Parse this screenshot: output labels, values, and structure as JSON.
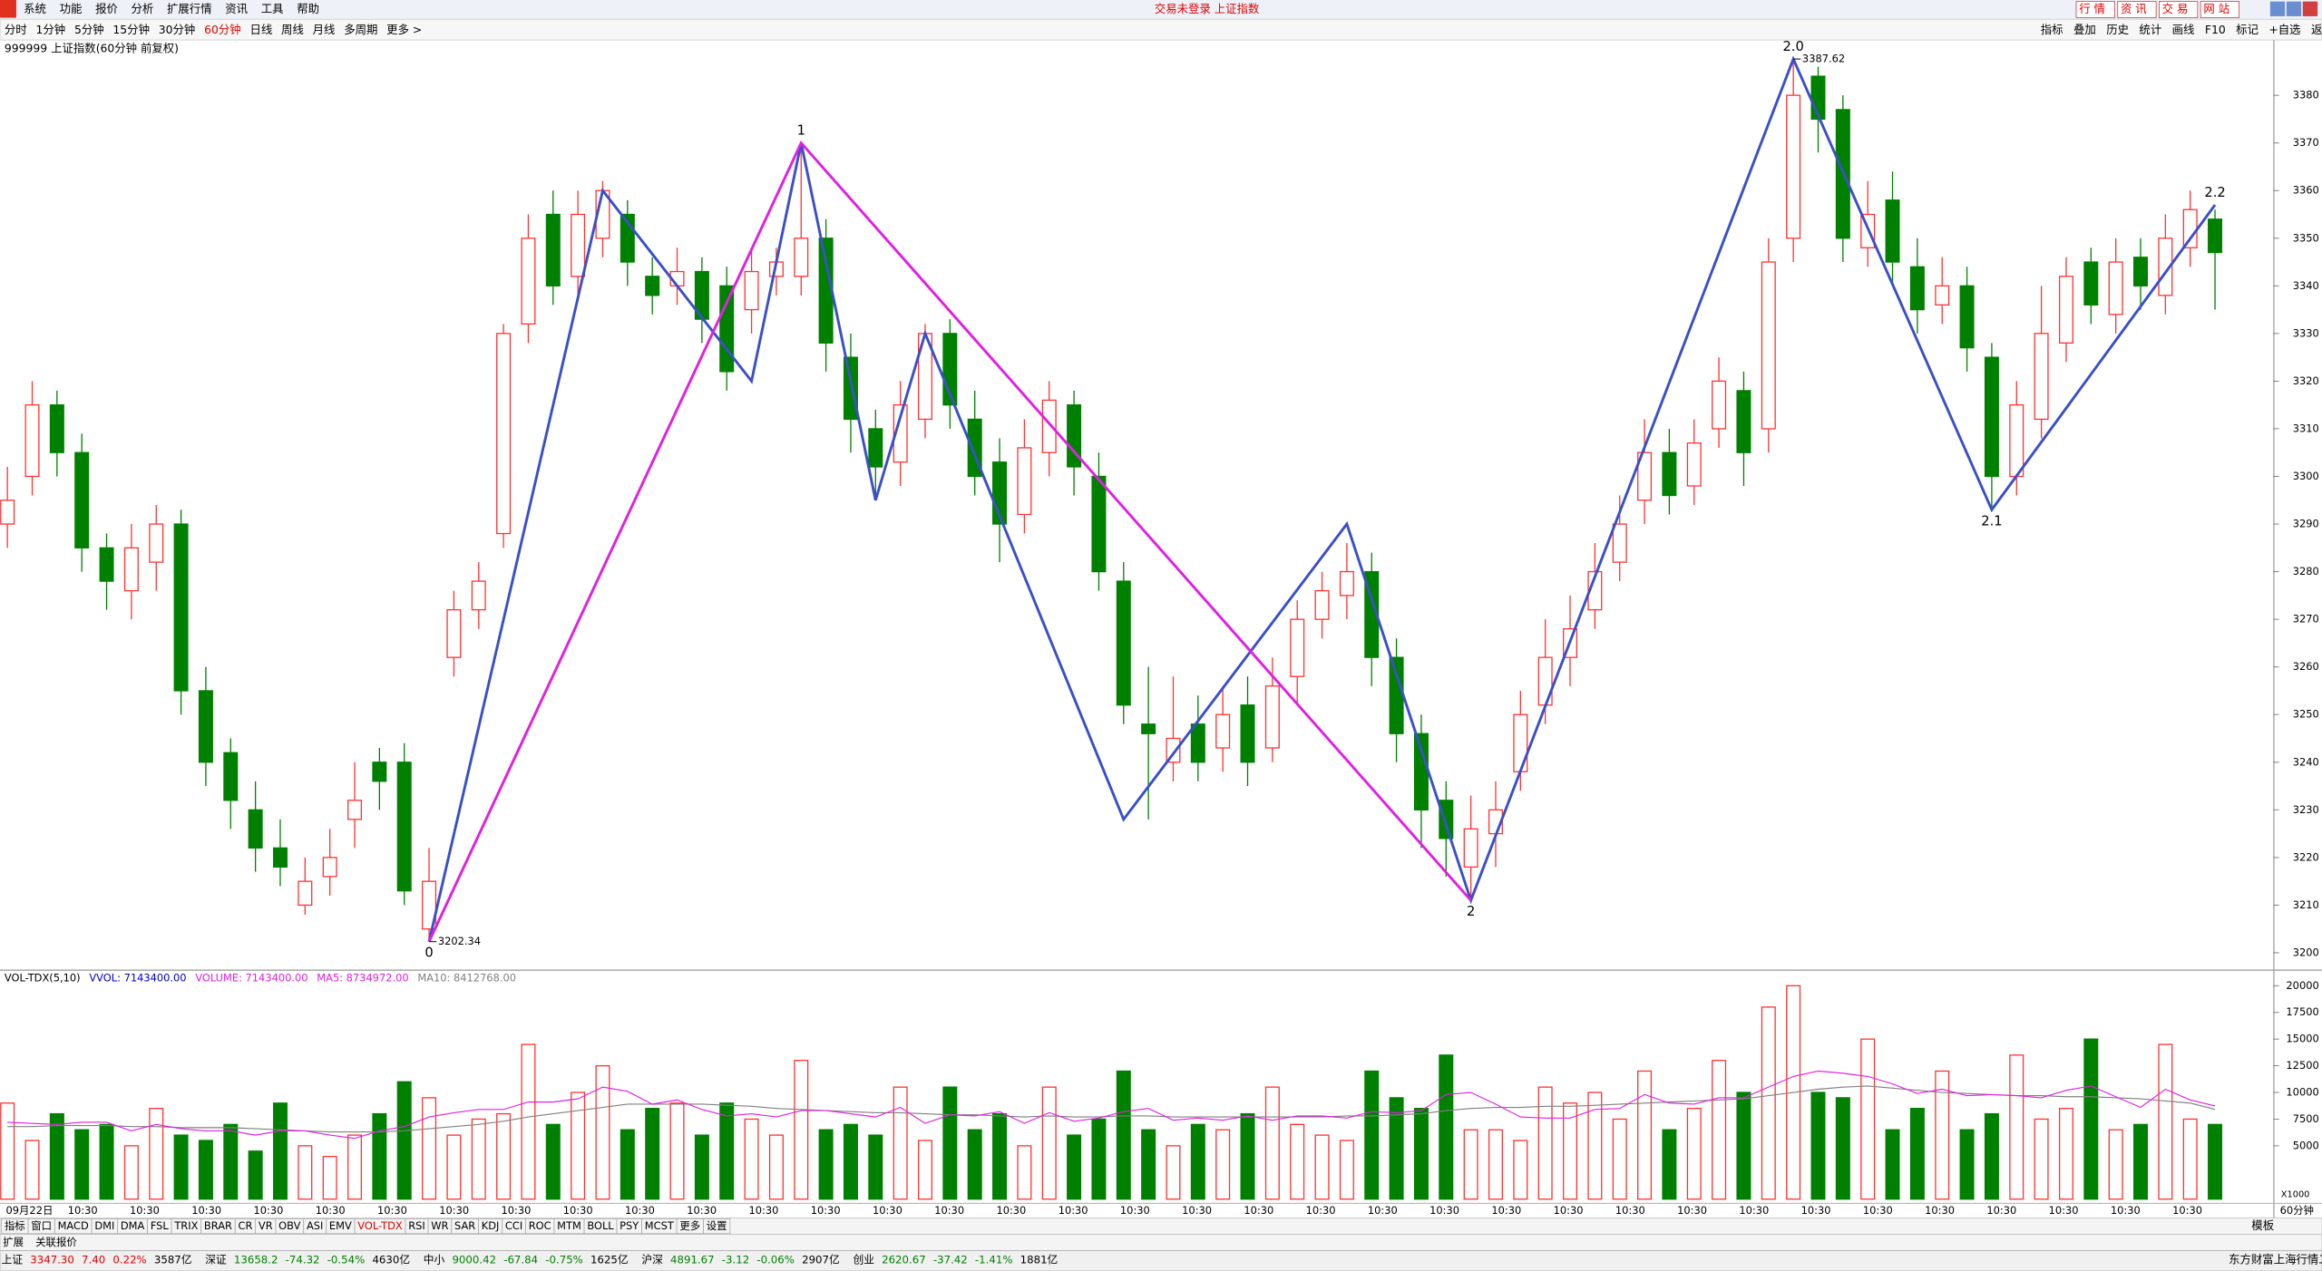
{
  "menu": [
    "系统",
    "功能",
    "报价",
    "分析",
    "扩展行情",
    "资讯",
    "工具",
    "帮助"
  ],
  "window_title": "交易未登录 上证指数",
  "top_buttons": [
    "行 情",
    "资 讯",
    "交 易",
    "网 站"
  ],
  "periods": [
    "分时",
    "1分钟",
    "5分钟",
    "15分钟",
    "30分钟",
    "60分钟",
    "日线",
    "周线",
    "月线",
    "多周期",
    "更多 >"
  ],
  "tools": [
    "指标",
    "叠加",
    "历史",
    "统计",
    "画线",
    "F10",
    "标记",
    "+自选",
    "返回"
  ],
  "chart_data": [
    {
      "type": "candlestick",
      "title": "999999 上证指数(60分钟 前复权)",
      "up_color": "#ff3232",
      "down_color": "#008000",
      "ylim": [
        3196.5,
        3388.2
      ],
      "yticks": [
        3200,
        3210,
        3220,
        3230,
        3240,
        3250,
        3260,
        3270,
        3280,
        3290,
        3300,
        3310,
        3320,
        3330,
        3340,
        3350,
        3360,
        3370,
        3380
      ],
      "open": [
        3290,
        3300,
        3315,
        3305,
        3285,
        3276,
        3282,
        3290,
        3255,
        3242,
        3230,
        3222,
        3210,
        3216,
        3228,
        3240,
        3240,
        3205,
        3262,
        3272,
        3288,
        3332,
        3355,
        3342,
        3350,
        3355,
        3342,
        3340,
        3343,
        3340,
        3335,
        3342,
        3342,
        3350,
        3325,
        3310,
        3303,
        3312,
        3330,
        3312,
        3303,
        3292,
        3305,
        3315,
        3300,
        3278,
        3248,
        3240,
        3248,
        3243,
        3252,
        3243,
        3258,
        3270,
        3275,
        3280,
        3262,
        3246,
        3232,
        3218,
        3225,
        3238,
        3252,
        3262,
        3272,
        3282,
        3295,
        3305,
        3298,
        3310,
        3318,
        3310,
        3350,
        3384,
        3377,
        3348,
        3358,
        3344,
        3336,
        3340,
        3325,
        3300,
        3312,
        3328,
        3345,
        3334,
        3346,
        3338,
        3348,
        3354
      ],
      "high": [
        3302,
        3320,
        3318,
        3309,
        3288,
        3290,
        3294,
        3293,
        3260,
        3245,
        3236,
        3228,
        3220,
        3226,
        3240,
        3243,
        3244,
        3222,
        3276,
        3282,
        3332,
        3355,
        3360,
        3360,
        3362,
        3358,
        3346,
        3348,
        3346,
        3344,
        3348,
        3348,
        3370,
        3354,
        3330,
        3314,
        3320,
        3332,
        3333,
        3318,
        3308,
        3312,
        3320,
        3318,
        3305,
        3282,
        3260,
        3258,
        3254,
        3256,
        3258,
        3262,
        3274,
        3280,
        3286,
        3284,
        3266,
        3250,
        3236,
        3233,
        3236,
        3255,
        3270,
        3275,
        3286,
        3296,
        3312,
        3310,
        3312,
        3325,
        3322,
        3350,
        3387.62,
        3386,
        3380,
        3362,
        3364,
        3350,
        3346,
        3344,
        3328,
        3320,
        3340,
        3346,
        3348,
        3350,
        3350,
        3355,
        3360,
        3356
      ],
      "low": [
        3285,
        3296,
        3300,
        3280,
        3272,
        3270,
        3276,
        3250,
        3235,
        3226,
        3217,
        3214,
        3208,
        3212,
        3222,
        3230,
        3210,
        3202.34,
        3258,
        3268,
        3285,
        3328,
        3336,
        3338,
        3346,
        3340,
        3334,
        3336,
        3328,
        3318,
        3330,
        3338,
        3338,
        3322,
        3305,
        3295,
        3298,
        3308,
        3310,
        3296,
        3282,
        3288,
        3300,
        3296,
        3276,
        3248,
        3228,
        3236,
        3236,
        3238,
        3235,
        3240,
        3252,
        3266,
        3270,
        3256,
        3240,
        3222,
        3216,
        3211,
        3218,
        3234,
        3248,
        3256,
        3268,
        3278,
        3290,
        3292,
        3294,
        3306,
        3298,
        3305,
        3345,
        3368,
        3345,
        3344,
        3340,
        3330,
        3332,
        3322,
        3293,
        3296,
        3308,
        3324,
        3332,
        3330,
        3335,
        3334,
        3344,
        3335
      ],
      "close": [
        3295,
        3315,
        3305,
        3285,
        3278,
        3285,
        3290,
        3255,
        3240,
        3232,
        3222,
        3218,
        3215,
        3220,
        3232,
        3236,
        3213,
        3215,
        3272,
        3278,
        3330,
        3350,
        3340,
        3355,
        3360,
        3345,
        3338,
        3343,
        3333,
        3322,
        3343,
        3345,
        3350,
        3328,
        3312,
        3302,
        3315,
        3330,
        3315,
        3300,
        3290,
        3306,
        3316,
        3302,
        3280,
        3252,
        3246,
        3245,
        3240,
        3250,
        3240,
        3256,
        3270,
        3276,
        3280,
        3262,
        3246,
        3230,
        3224,
        3226,
        3230,
        3250,
        3262,
        3268,
        3280,
        3290,
        3305,
        3296,
        3307,
        3320,
        3305,
        3345,
        3380,
        3375,
        3350,
        3355,
        3345,
        3335,
        3340,
        3327,
        3300,
        3315,
        3330,
        3342,
        3336,
        3345,
        3340,
        3350,
        3356,
        3347
      ],
      "waves": [
        {
          "color": "#3a4fc8",
          "points": [
            {
              "i": 17,
              "price": 3202.34
            },
            {
              "i": 24,
              "price": 3360
            },
            {
              "i": 30,
              "price": 3320
            },
            {
              "i": 32,
              "price": 3370
            },
            {
              "i": 35,
              "price": 3295
            },
            {
              "i": 37,
              "price": 3330
            },
            {
              "i": 45,
              "price": 3228
            },
            {
              "i": 54,
              "price": 3290
            },
            {
              "i": 59,
              "price": 3211
            },
            {
              "i": 72,
              "price": 3387.62
            },
            {
              "i": 80,
              "price": 3293
            },
            {
              "i": 89,
              "price": 3357
            }
          ]
        },
        {
          "color": "#e020e0",
          "points": [
            {
              "i": 17,
              "price": 3202.34
            },
            {
              "i": 32,
              "price": 3370
            },
            {
              "i": 59,
              "price": 3211
            }
          ]
        }
      ],
      "wave_labels": [
        {
          "text": "0",
          "i": 17,
          "price": 3202.34
        },
        {
          "text": "1",
          "i": 32,
          "price": 3370
        },
        {
          "text": "2",
          "i": 59,
          "price": 3211
        },
        {
          "text": "2.0",
          "i": 72,
          "price": 3387.62
        },
        {
          "text": "2.1",
          "i": 80,
          "price": 3293
        },
        {
          "text": "2.2",
          "i": 89,
          "price": 3357
        }
      ],
      "price_marks": [
        {
          "i": 17,
          "value": 3202.34
        },
        {
          "i": 72,
          "value": 3387.62
        }
      ]
    },
    {
      "type": "volume",
      "header": [
        "VOL-TDX(5,10)",
        "VVOL: 7143400.00",
        "VOLUME: 7143400.00",
        "MA5: 8734972.00",
        "MA10: 8412768.00"
      ],
      "header_colors": [
        "#000000",
        "#0000c8",
        "#e020e0",
        "#e020e0",
        "#808080"
      ],
      "axis_unit": "X1000",
      "ylim": [
        -250,
        21250
      ],
      "yticks": [
        5000,
        7500,
        10000,
        12500,
        15000,
        17500,
        20000
      ],
      "ma5_color": "#e020e0",
      "ma10_color": "#808080",
      "values": [
        9000,
        5500,
        8000,
        6500,
        7000,
        5000,
        8500,
        6000,
        5500,
        7000,
        4500,
        9000,
        5000,
        4000,
        6000,
        8000,
        11000,
        9500,
        6000,
        7500,
        8000,
        14500,
        7000,
        10000,
        12500,
        6500,
        8500,
        9000,
        6000,
        9000,
        7500,
        6000,
        13000,
        6500,
        7000,
        6000,
        10500,
        5500,
        10500,
        6500,
        8000,
        5000,
        10500,
        6000,
        7500,
        12000,
        6500,
        5000,
        7000,
        6500,
        8000,
        10500,
        7000,
        6000,
        5500,
        12000,
        9500,
        8500,
        13500,
        6500,
        6500,
        5500,
        10500,
        9000,
        10000,
        7500,
        12000,
        6500,
        8500,
        13000,
        10000,
        18000,
        20000,
        10000,
        9500,
        15000,
        6500,
        8500,
        12000,
        6500,
        8000,
        13500,
        7500,
        8500,
        15000,
        6500,
        7000,
        14500,
        7500,
        7000
      ],
      "ma5": [
        7200,
        7100,
        7000,
        7200,
        7200,
        6400,
        7000,
        6600,
        6400,
        6400,
        6000,
        6400,
        6400,
        6000,
        5700,
        6400,
        6800,
        7700,
        8100,
        8400,
        8400,
        9100,
        9100,
        9400,
        10500,
        10100,
        8900,
        9300,
        8400,
        7800,
        8000,
        7700,
        8300,
        8300,
        8000,
        7700,
        8600,
        7100,
        7900,
        7800,
        8200,
        7100,
        8100,
        7300,
        7600,
        8200,
        8500,
        7400,
        7600,
        7400,
        7800,
        7400,
        7800,
        7800,
        7600,
        8200,
        8100,
        8300,
        9800,
        10000,
        8900,
        7700,
        7600,
        7600,
        8400,
        8500,
        9800,
        9000,
        8900,
        9500,
        9500,
        10500,
        11500,
        12000,
        11800,
        11500,
        10800,
        9900,
        10300,
        9700,
        9800,
        9700,
        9500,
        10200,
        10600,
        9600,
        8600,
        10300,
        9300,
        8734.972
      ],
      "ma10": [
        6800,
        6800,
        6900,
        6900,
        6900,
        6800,
        6800,
        6700,
        6700,
        6700,
        6600,
        6500,
        6400,
        6300,
        6300,
        6300,
        6400,
        6600,
        6800,
        7000,
        7300,
        7700,
        8000,
        8300,
        8600,
        8900,
        8900,
        8900,
        8900,
        8800,
        8700,
        8500,
        8400,
        8300,
        8200,
        8100,
        8100,
        8000,
        7900,
        7900,
        7800,
        7700,
        7800,
        7700,
        7700,
        7800,
        7800,
        7700,
        7700,
        7700,
        7700,
        7700,
        7700,
        7700,
        7800,
        7800,
        7900,
        8000,
        8300,
        8500,
        8600,
        8600,
        8700,
        8700,
        8800,
        8900,
        9000,
        9100,
        9200,
        9300,
        9400,
        9700,
        10000,
        10300,
        10500,
        10600,
        10400,
        10200,
        10000,
        9900,
        9800,
        9700,
        9700,
        9600,
        9600,
        9500,
        9400,
        9200,
        9000,
        8412.768
      ]
    }
  ],
  "x_labels": [
    "09月22日",
    "10:30",
    "10:30",
    "10:30",
    "10:30",
    "10:30",
    "10:30",
    "10:30",
    "10:30",
    "10:30",
    "10:30",
    "10:30",
    "10:30",
    "10:30",
    "10:30",
    "10:30",
    "10:30",
    "10:30",
    "10:30",
    "10:30",
    "10:30",
    "10:30",
    "10:30",
    "10:30",
    "10:30",
    "10:30",
    "10:30",
    "10:30",
    "10:30",
    "10:30",
    "10:30",
    "10:30",
    "10:30",
    "10:30",
    "10:30",
    "10:30"
  ],
  "period_label": "60分钟",
  "template_button": "模板",
  "indicator_tabs": [
    "指标",
    "窗口",
    "MACD",
    "DMI",
    "DMA",
    "FSL",
    "TRIX",
    "BRAR",
    "CR",
    "VR",
    "OBV",
    "ASI",
    "EMV",
    "VOL-TDX",
    "RSI",
    "WR",
    "SAR",
    "KDJ",
    "CCI",
    "ROC",
    "MTM",
    "BOLL",
    "PSY",
    "MCST",
    "更多",
    "设置"
  ],
  "sub_tabs": [
    "扩展",
    "关联报价"
  ],
  "status": [
    {
      "name": "上证",
      "price": "3347.30",
      "change": "7.40",
      "pct": "0.22%",
      "amount": "3587亿"
    },
    {
      "name": "深证",
      "price": "13658.2",
      "change": "-74.32",
      "pct": "-0.54%",
      "amount": "4630亿"
    },
    {
      "name": "中小",
      "price": "9000.42",
      "change": "-67.84",
      "pct": "-0.75%",
      "amount": "1625亿"
    },
    {
      "name": "沪深",
      "price": "4891.67",
      "change": "-3.12",
      "pct": "-0.06%",
      "amount": "2907亿"
    },
    {
      "name": "创业",
      "price": "2620.67",
      "change": "-37.42",
      "pct": "-1.41%",
      "amount": "1881亿"
    }
  ],
  "feed": "东方财富上海行情二"
}
